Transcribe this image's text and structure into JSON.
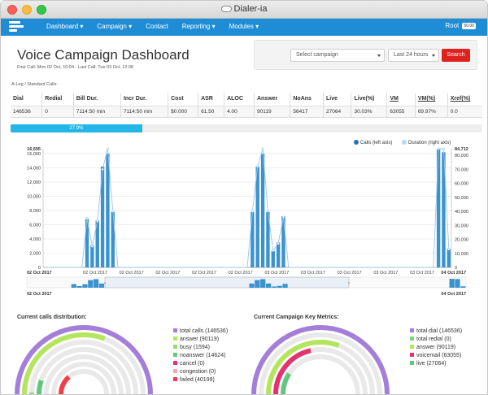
{
  "window": {
    "title": "Dialer-ia"
  },
  "nav": {
    "items": [
      {
        "label": "Dashboard",
        "has_caret": true
      },
      {
        "label": "Campaign",
        "has_caret": true
      },
      {
        "label": "Contact",
        "has_caret": false
      },
      {
        "label": "Reporting",
        "has_caret": true
      },
      {
        "label": "Modules",
        "has_caret": true
      }
    ],
    "user": "Root",
    "user_badge": "50.00"
  },
  "header": {
    "title": "Voice Campaign Dashboard",
    "last_call": "First Call: Mon 02 Oct, 10:04 - Last Call: Tue 03 Oct, 12:08"
  },
  "filter": {
    "campaign_value": "Select campaign",
    "range_value": "Last 24 hours",
    "search_label": "Search"
  },
  "stats": {
    "caption": "A-Leg / Standard Calls:",
    "columns": [
      "Dial",
      "Redial",
      "Bill Dur.",
      "Incr Dur.",
      "Cost",
      "ASR",
      "ALOC",
      "Answer",
      "NoAns",
      "Live",
      "Live(%)",
      "VM",
      "VM(%)",
      "Xref(%)"
    ],
    "row": [
      "146536",
      "0",
      "7114:50 min",
      "7114:50 min",
      "$0.000",
      "61.50",
      "4.00",
      "90119",
      "56417",
      "27064",
      "30.03%",
      "63055",
      "69.97%",
      "0.0"
    ]
  },
  "progress": {
    "value": 27.9,
    "label": "27.9%"
  },
  "colors": {
    "accent": "#1f8dd6",
    "bar": "#3a92cf",
    "danger": "#e0221c",
    "progress": "#25b6e8"
  },
  "chart_data": {
    "type": "bar",
    "series": [
      {
        "name": "Calls (left axis)",
        "type": "bar",
        "values": [
          0,
          0,
          0,
          0,
          0,
          0,
          0,
          0,
          6800,
          3100,
          6600,
          14200,
          16000,
          7800,
          0,
          0,
          0,
          0,
          0,
          0,
          0,
          0,
          0,
          0,
          0,
          0,
          0,
          0,
          0,
          0,
          0,
          0,
          0,
          0,
          0,
          0,
          0,
          0,
          0,
          0,
          7800,
          14200,
          16000,
          7800,
          2300,
          3500,
          7200,
          0,
          0,
          0,
          0,
          0,
          0,
          0,
          0,
          0,
          0,
          0,
          0,
          0,
          0,
          0,
          0,
          0,
          0,
          0,
          0,
          0,
          0,
          0,
          0,
          0,
          0,
          0,
          0,
          0,
          16600,
          16200,
          2600
        ]
      },
      {
        "name": "Duration (right axis)",
        "type": "line",
        "values": [
          0,
          0,
          0,
          0,
          0,
          0,
          0,
          0,
          35000,
          15000,
          33000,
          70000,
          84712,
          40000,
          0,
          0,
          0,
          0,
          0,
          0,
          0,
          0,
          0,
          0,
          0,
          0,
          0,
          0,
          0,
          0,
          0,
          0,
          0,
          0,
          0,
          0,
          0,
          0,
          0,
          0,
          40000,
          72000,
          84712,
          40000,
          12000,
          17000,
          36000,
          0,
          0,
          0,
          0,
          0,
          0,
          0,
          0,
          0,
          0,
          0,
          0,
          0,
          0,
          0,
          0,
          0,
          0,
          0,
          0,
          0,
          0,
          0,
          0,
          0,
          0,
          0,
          0,
          0,
          84712,
          84712,
          13000
        ]
      }
    ],
    "y_left": {
      "ticks": [
        0,
        2000,
        4000,
        6000,
        8000,
        10000,
        12000,
        14000,
        16000
      ],
      "max_label": "16,695",
      "ylim": [
        0,
        16695
      ]
    },
    "y_right": {
      "ticks": [
        0,
        10000,
        20000,
        30000,
        40000,
        50000,
        60000,
        70000,
        80000
      ],
      "max_label": "84,712",
      "ylim": [
        0,
        84712
      ]
    },
    "x_ticks": [
      "02 Oct 2017",
      "02 Oct 2017",
      "02 Oct 2017",
      "02 Oct 2017",
      "02 Oct 2017",
      "03 Oct 2017",
      "03 Oct 2017",
      "03 Oct 2017",
      "03 Oct 2017",
      "03 Oct 2017"
    ],
    "x_start": "02 Oct 2017",
    "x_end": "04 Oct 2017",
    "navigator_start": "02 Oct 2017",
    "navigator_end": "04 Oct 2017",
    "legend_placement": "top-right",
    "grid": true
  },
  "calls_distribution": {
    "title": "Current calls distribution:",
    "items": [
      {
        "label": "total calls (146536)",
        "color": "#a47fd9",
        "value": 146536
      },
      {
        "label": "answer (90119)",
        "color": "#b3e65c",
        "value": 90119
      },
      {
        "label": "busy (1594)",
        "color": "#8fe073",
        "value": 1594
      },
      {
        "label": "noanswer (14624)",
        "color": "#5ec97c",
        "value": 14624
      },
      {
        "label": "cancel (0)",
        "color": "#e4336f",
        "value": 0
      },
      {
        "label": "congestion (0)",
        "color": "#f5a3c0",
        "value": 0
      },
      {
        "label": "failed (40199)",
        "color": "#ee3f4a",
        "value": 40199
      }
    ]
  },
  "key_metrics": {
    "title": "Current Campaign Key Metrics:",
    "items": [
      {
        "label": "total dial (146536)",
        "color": "#a47fd9",
        "value": 146536
      },
      {
        "label": "total redial (0)",
        "color": "#7ed37e",
        "value": 0
      },
      {
        "label": "answer (90119)",
        "color": "#b3e65c",
        "value": 90119
      },
      {
        "label": "voicemail (63055)",
        "color": "#e4336f",
        "value": 63055
      },
      {
        "label": "live (27064)",
        "color": "#5ec97c",
        "value": 27064
      }
    ]
  }
}
